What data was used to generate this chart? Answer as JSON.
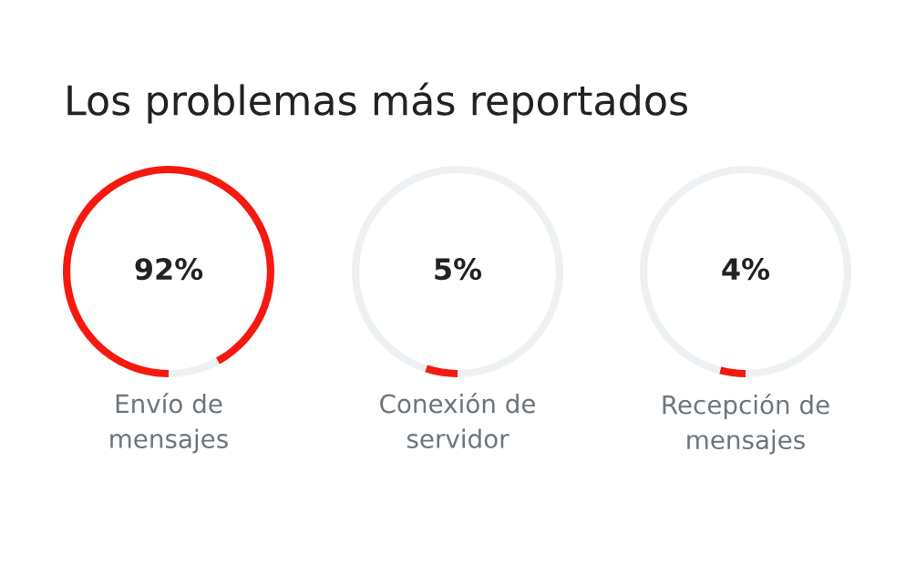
{
  "chart_data": [
    {
      "type": "donut",
      "title": "Los problemas más reportados",
      "categories": [
        "Envío de mensajes",
        null
      ],
      "values": [
        92,
        8
      ],
      "colors": [
        "#f5190f",
        "#eef1f3"
      ],
      "annotations": [
        "92%"
      ]
    },
    {
      "type": "donut",
      "categories": [
        "Conexión de servidor",
        null
      ],
      "values": [
        5,
        95
      ],
      "colors": [
        "#f5190f",
        "#eef1f3"
      ],
      "annotations": [
        "5%"
      ]
    },
    {
      "type": "donut",
      "categories": [
        "Recepción de mensajes",
        null
      ],
      "values": [
        4,
        96
      ],
      "colors": [
        "#f5190f",
        "#eef1f3"
      ],
      "annotations": [
        "4%"
      ]
    }
  ]
}
